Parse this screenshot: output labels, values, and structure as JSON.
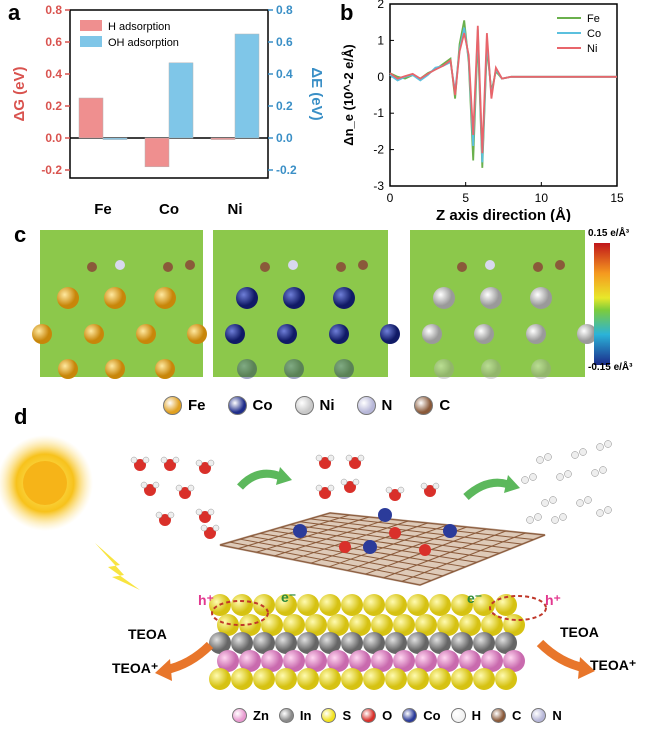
{
  "panels": {
    "a": "a",
    "b": "b",
    "c": "c",
    "d": "d"
  },
  "chart_data": [
    {
      "type": "bar",
      "categories": [
        "Fe",
        "Co",
        "Ni"
      ],
      "series": [
        {
          "name": "H adsorption",
          "values": [
            0.25,
            -0.18,
            -0.01
          ],
          "color": "#ef8f8f"
        },
        {
          "name": "OH adsorption",
          "values": [
            -0.01,
            0.47,
            0.65
          ],
          "color": "#7fc6e8"
        }
      ],
      "ylabel_left": "ΔG (eV)",
      "ylabel_right": "ΔE (eV)",
      "ylim": [
        -0.25,
        0.8
      ],
      "yticks": [
        -0.2,
        0.0,
        0.2,
        0.4,
        0.6,
        0.8
      ],
      "ytick_labels": [
        "-0.2",
        "0.0",
        "0.2",
        "0.4",
        "0.6",
        "0.8"
      ],
      "left_color": "#d9534f",
      "right_color": "#3a8fc6",
      "legend": "top-left"
    },
    {
      "type": "line",
      "xlabel": "Z axis direction (Å)",
      "ylabel": "Δn_e (10^-2 e/Å)",
      "xlim": [
        0,
        15
      ],
      "ylim": [
        -3,
        2
      ],
      "xticks": [
        0,
        5,
        10,
        15
      ],
      "yticks": [
        -3,
        -2,
        -1,
        0,
        1,
        2
      ],
      "series": [
        {
          "name": "Fe",
          "color": "#6ab04c",
          "x": [
            0,
            0.5,
            1,
            1.5,
            2,
            2.5,
            3,
            3.5,
            4,
            4.3,
            4.6,
            4.9,
            5.2,
            5.5,
            5.8,
            6.1,
            6.4,
            6.7,
            7.0,
            7.4,
            8,
            9,
            10,
            15
          ],
          "y": [
            0.1,
            0,
            -0.05,
            0.05,
            -0.05,
            0.1,
            0.2,
            0.35,
            0.5,
            -0.6,
            0.9,
            1.55,
            0.4,
            -2.3,
            1.1,
            -2.5,
            0.8,
            -0.4,
            0.15,
            -0.05,
            0,
            0,
            0,
            0
          ]
        },
        {
          "name": "Co",
          "color": "#5bc0de",
          "x": [
            0,
            0.5,
            1,
            1.5,
            2,
            2.5,
            3,
            3.5,
            4,
            4.3,
            4.6,
            4.9,
            5.2,
            5.5,
            5.8,
            6.1,
            6.4,
            6.7,
            7.0,
            7.4,
            8,
            9,
            10,
            15
          ],
          "y": [
            0.05,
            -0.1,
            0,
            0.05,
            -0.1,
            0.05,
            0.25,
            0.3,
            0.4,
            -0.4,
            0.75,
            1.35,
            0.5,
            -1.9,
            1.3,
            -2.35,
            1.0,
            -0.5,
            0.2,
            -0.05,
            0,
            0,
            0,
            0
          ]
        },
        {
          "name": "Ni",
          "color": "#e8656b",
          "x": [
            0,
            0.5,
            1,
            1.5,
            2,
            2.5,
            3,
            3.5,
            4,
            4.3,
            4.6,
            4.9,
            5.2,
            5.5,
            5.8,
            6.1,
            6.4,
            6.7,
            7.0,
            7.4,
            8,
            9,
            10,
            15
          ],
          "y": [
            0.1,
            -0.05,
            0.02,
            0.08,
            -0.05,
            0.08,
            0.2,
            0.3,
            0.45,
            -0.5,
            0.7,
            1.2,
            0.6,
            -1.6,
            1.4,
            -2.1,
            1.2,
            -0.6,
            0.25,
            -0.05,
            0,
            0,
            0,
            0
          ]
        }
      ],
      "legend": "top-right"
    }
  ],
  "panel_c": {
    "colorbar_max": "0.15 e/Å³",
    "colorbar_min": "-0.15 e/Å³",
    "legend": [
      {
        "label": "Fe",
        "color": "#e0a020"
      },
      {
        "label": "Co",
        "color": "#1f2d8a"
      },
      {
        "label": "Ni",
        "color": "#c8c8c8"
      },
      {
        "label": "N",
        "color": "#b7b7d8"
      },
      {
        "label": "C",
        "color": "#8a5a3a"
      }
    ]
  },
  "panel_d": {
    "h_plus_left": "h⁺",
    "h_plus_right": "h⁺",
    "e_minus_left": "e⁻",
    "e_minus_right": "e⁻",
    "teoa_left": "TEOA",
    "teoa_plus_left": "TEOA⁺",
    "teoa_right": "TEOA",
    "teoa_plus_right": "TEOA⁺",
    "legend": [
      {
        "label": "Zn",
        "color": "#e89ad0"
      },
      {
        "label": "In",
        "color": "#8a8a8a"
      },
      {
        "label": "S",
        "color": "#f2e21e"
      },
      {
        "label": "O",
        "color": "#d9302a"
      },
      {
        "label": "Co",
        "color": "#2b3b9a"
      },
      {
        "label": "H",
        "color": "#f2f2f2"
      },
      {
        "label": "C",
        "color": "#8a5a3a"
      },
      {
        "label": "N",
        "color": "#b7b7d8"
      }
    ]
  }
}
